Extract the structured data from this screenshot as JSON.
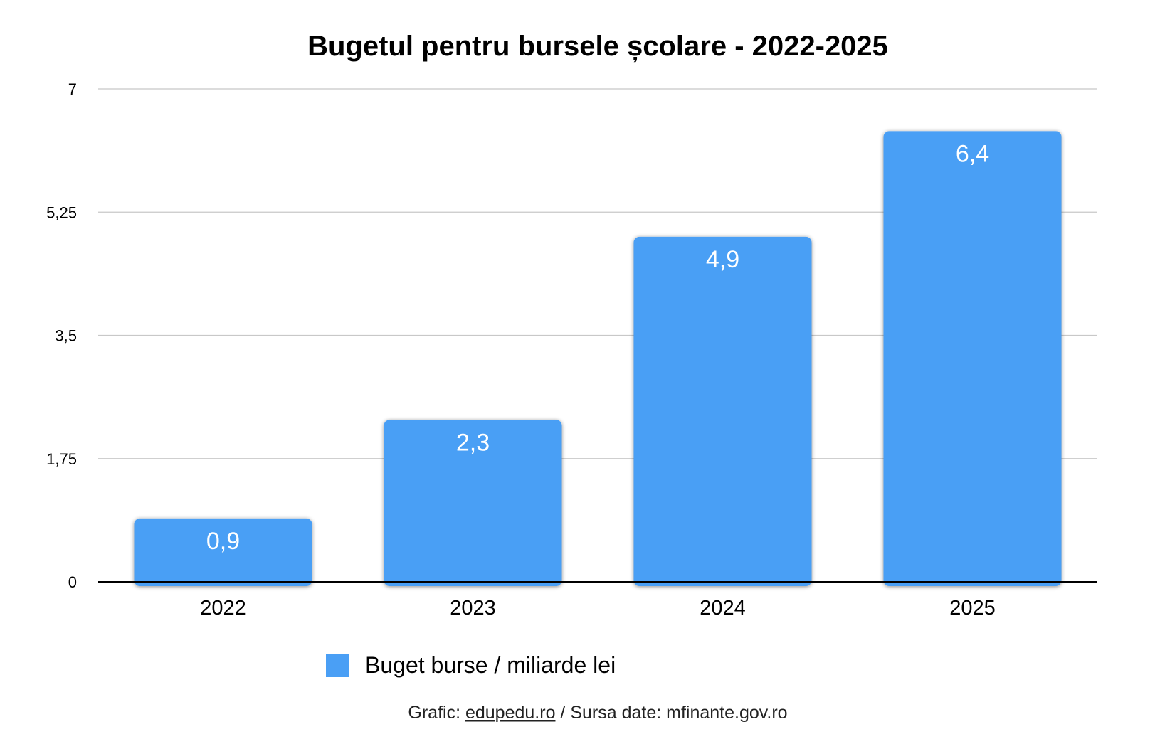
{
  "colors": {
    "bar": "#4A9FF5",
    "grid": "#C8C8C8",
    "axis": "#000000",
    "bar_label": "#FFFFFF"
  },
  "chart_data": {
    "type": "bar",
    "title": "Bugetul pentru bursele școlare - 2022-2025",
    "categories": [
      "2022",
      "2023",
      "2024",
      "2025"
    ],
    "series": [
      {
        "name": "Buget burse / miliarde lei",
        "values": [
          0.9,
          2.3,
          4.9,
          6.4
        ],
        "data_labels": [
          "0,9",
          "2,3",
          "4,9",
          "6,4"
        ]
      }
    ],
    "xlabel": "",
    "ylabel": "",
    "ylim": [
      0,
      7
    ],
    "yticks": [
      0,
      1.75,
      3.5,
      5.25,
      7
    ],
    "ytick_labels": [
      "0",
      "1,75",
      "3,5",
      "5,25",
      "7"
    ],
    "grid": true,
    "legend_position": "bottom"
  },
  "footer": {
    "prefix": "Grafic: ",
    "link": "edupedu.ro",
    "suffix": " / Sursa date: mfinante.gov.ro"
  }
}
